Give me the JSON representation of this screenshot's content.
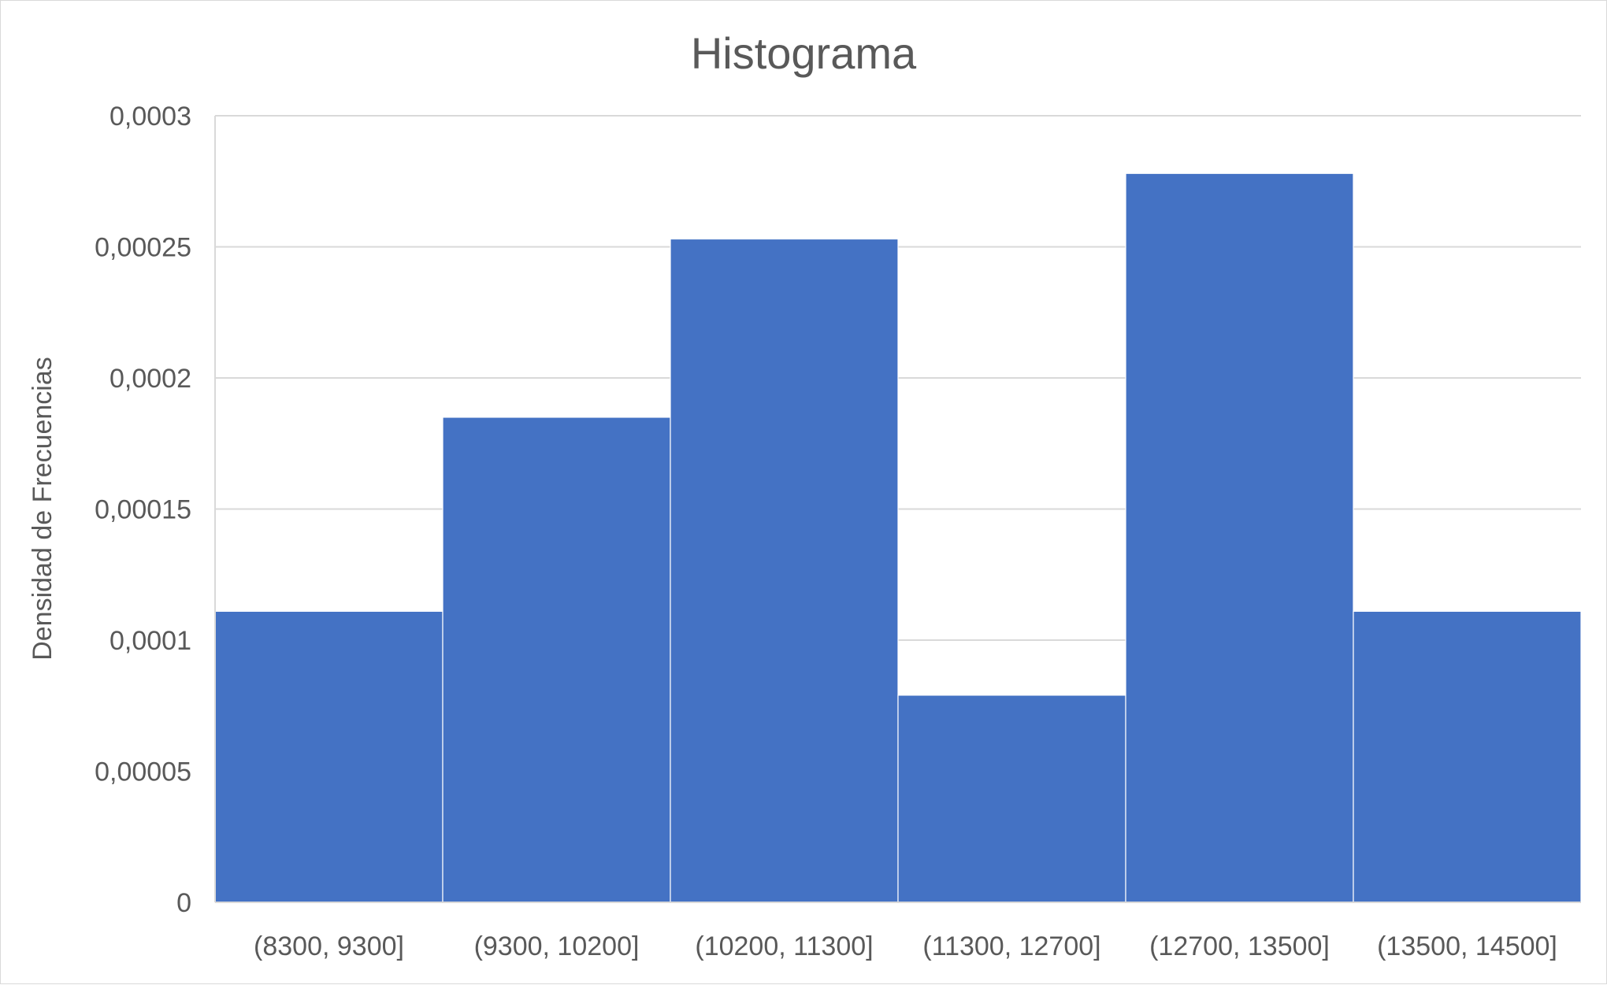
{
  "chart_data": {
    "type": "bar",
    "title": "Histograma",
    "xlabel": "",
    "ylabel": "Densidad de Frecuencias",
    "categories": [
      "(8300, 9300]",
      "(9300, 10200]",
      "(10200, 11300]",
      "(11300, 12700]",
      "(12700, 13500]",
      "(13500, 14500]"
    ],
    "values": [
      0.000111,
      0.000185,
      0.000253,
      7.9e-05,
      0.000278,
      0.000111
    ],
    "ylim": [
      0,
      0.0003
    ],
    "yticks": [
      0,
      5e-05,
      0.0001,
      0.00015,
      0.0002,
      0.00025,
      0.0003
    ],
    "ytick_labels": [
      "0",
      "0,00005",
      "0,0001",
      "0,00015",
      "0,0002",
      "0,00025",
      "0,0003"
    ],
    "grid": true,
    "bar_color": "#4472C4",
    "gridline_color": "#d9d9d9",
    "text_color": "#595959"
  }
}
